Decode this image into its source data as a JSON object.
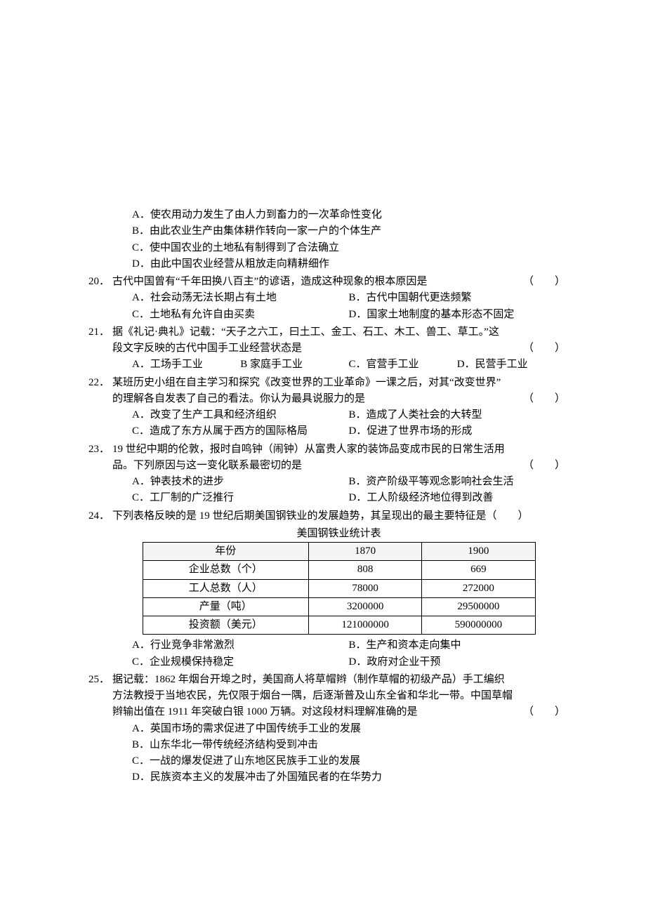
{
  "q19_opts": {
    "A": "A．使农用动力发生了由人力到畜力的一次革命性变化",
    "B": "B．由此农业生产由集体耕作转向一家一户的个体生产",
    "C": "C．使中国农业的土地私有制得到了合法确立",
    "D": "D．由此中国农业经营从粗放走向精耕细作"
  },
  "q20": {
    "num": "20．",
    "stem": "古代中国曾有“千年田换八百主”的谚语，造成这种现象的根本原因是",
    "paren": "（　　）",
    "A": "A．社会动荡无法长期占有土地",
    "B": "B．古代中国朝代更迭频繁",
    "C": "C．土地私有允许自由买卖",
    "D": "D．国家土地制度的基本形态不固定"
  },
  "q21": {
    "num": "21．",
    "line1": "据《礼记·典礼》记载：“天子之六工，曰土工、金工、石工、木工、兽工、草工。”这",
    "line2": "段文字反映的古代中国手工业经营状态是",
    "paren": "（　　）",
    "A": "A．工场手工业",
    "B": "B 家庭手工业",
    "C": "C．官营手工业",
    "D": "D．民营手工业"
  },
  "q22": {
    "num": "22．",
    "line1": "某班历史小组在自主学习和探究《改变世界的工业革命》一课之后，对其“改变世界”",
    "line2": "的理解各自发表了自己的看法。你认为最具说服力的是",
    "paren": "（　　）",
    "A": "A．改变了生产工具和经济组织",
    "B": "B．造成了人类社会的大转型",
    "C": "C．造成了东方从属于西方的国际格局",
    "D": "D．促进了世界市场的形成"
  },
  "q23": {
    "num": "23．",
    "line1": "19 世纪中期的伦敦，报时自鸣钟（闹钟）从富贵人家的装饰品变成市民的日常生活用",
    "line2": "品。下列原因与这一变化联系最密切的是",
    "paren": "（　　）",
    "A": "A．钟表技术的进步",
    "B": "B．资产阶级平等观念影响社会生活",
    "C": "C．工厂制的广泛推行",
    "D": "D．工人阶级经济地位得到改善"
  },
  "q24": {
    "num": "24．",
    "stem": "下列表格反映的是 19 世纪后期美国钢铁业的发展趋势，其呈现出的最主要特征是（　　）",
    "caption": "美国钢铁业统计表",
    "A": "A．行业竞争非常激烈",
    "B": "B．生产和资本走向集中",
    "C": "C．企业规模保持稳定",
    "D": "D．政府对企业干预"
  },
  "table": {
    "rows": [
      [
        "年份",
        "1870",
        "1900"
      ],
      [
        "企业总数（个）",
        "808",
        "669"
      ],
      [
        "工人总数（人）",
        "78000",
        "272000"
      ],
      [
        "产量（吨）",
        "3200000",
        "29500000"
      ],
      [
        "投资额（美元）",
        "121000000",
        "590000000"
      ]
    ]
  },
  "q25": {
    "num": "25．",
    "line1": "据记载：1862 年烟台开埠之时，美国商人将草帽辫（制作草帽的初级产品）手工编织",
    "line2": "方法教授于当地农民，先仅限于烟台一隅，后逐渐普及山东全省和华北一带。中国草帽",
    "line3": "辫输出值在 1911 年突破白银 1000 万辆。对这段材料理解准确的是",
    "paren": "（　　）",
    "A": "A．英国市场的需求促进了中国传统手工业的发展",
    "B": "B．山东华北一带传统经济结构受到冲击",
    "C": "C．一战的爆发促进了山东地区民族手工业的发展",
    "D": "D．民族资本主义的发展冲击了外国殖民者的在华势力"
  }
}
